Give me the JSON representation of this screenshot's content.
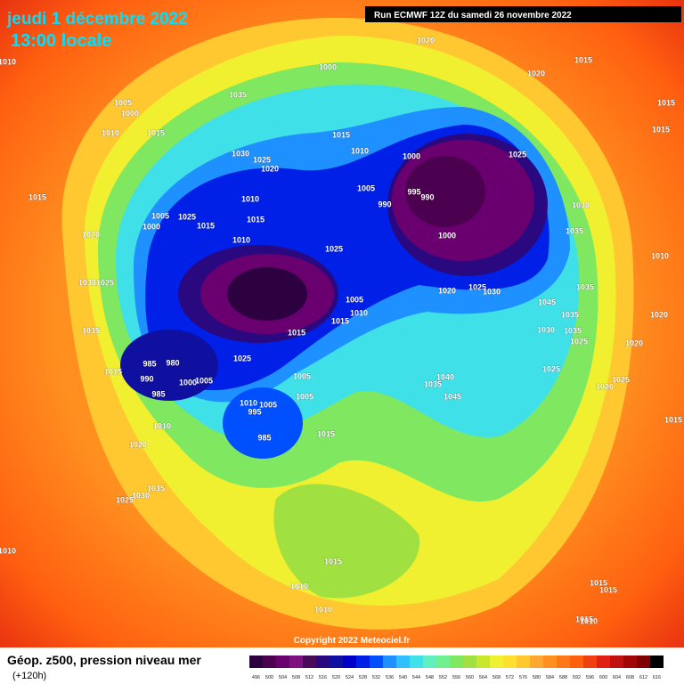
{
  "header": {
    "date": "jeudi 1 décembre 2022",
    "time": "13:00 locale",
    "run": "Run ECMWF 12Z du samedi 26 novembre 2022"
  },
  "copyright": "Copyright 2022 Meteociel.fr",
  "footer": {
    "title": "Géop. z500, pression niveau mer",
    "lead": "(+120h)"
  },
  "legend": {
    "levels": [
      496,
      500,
      504,
      508,
      512,
      516,
      520,
      524,
      528,
      532,
      536,
      540,
      544,
      548,
      552,
      556,
      560,
      564,
      568,
      572,
      576,
      580,
      584,
      588,
      592,
      596,
      600,
      604,
      608,
      612,
      616
    ],
    "colors": [
      "#2d0040",
      "#4b0050",
      "#6a0070",
      "#7e1080",
      "#4a0a5a",
      "#2a0880",
      "#1010a0",
      "#0000c8",
      "#0020e8",
      "#0050ff",
      "#1e90ff",
      "#30c0ff",
      "#40e0e8",
      "#60f0c0",
      "#70f090",
      "#80e860",
      "#a0e040",
      "#c8e830",
      "#f0f030",
      "#ffe030",
      "#ffc830",
      "#ffa830",
      "#ff9020",
      "#ff7818",
      "#ff6010",
      "#f04010",
      "#e02010",
      "#c01010",
      "#a00808",
      "#800000",
      "#000000"
    ]
  },
  "isobar_labels": [
    "1020",
    "1015",
    "1000",
    "1020",
    "1005",
    "1000",
    "1035",
    "1015",
    "1010",
    "1015",
    "1015",
    "1015",
    "1010",
    "1030",
    "1025",
    "1020",
    "1000",
    "1025",
    "995",
    "990",
    "1005",
    "990",
    "1015",
    "1010",
    "1005",
    "1025",
    "1000",
    "1015",
    "1015",
    "1030",
    "1020",
    "1010",
    "1000",
    "1035",
    "1025",
    "1010",
    "1030",
    "1025",
    "1020",
    "1025",
    "1030",
    "1035",
    "1005",
    "1045",
    "1010",
    "1015",
    "1035",
    "1020",
    "1035",
    "1015",
    "1030",
    "1035",
    "1025",
    "1020",
    "985",
    "980",
    "1025",
    "1015",
    "990",
    "1005",
    "1040",
    "1025",
    "1035",
    "1000",
    "1005",
    "985",
    "1005",
    "1045",
    "1020",
    "1025",
    "1010",
    "1005",
    "995",
    "1010",
    "1015",
    "985",
    "1015",
    "1020",
    "1035",
    "1030",
    "1025",
    "1010",
    "1015",
    "1010",
    "1015",
    "1015",
    "1010",
    "1015",
    "1010",
    "1010"
  ]
}
